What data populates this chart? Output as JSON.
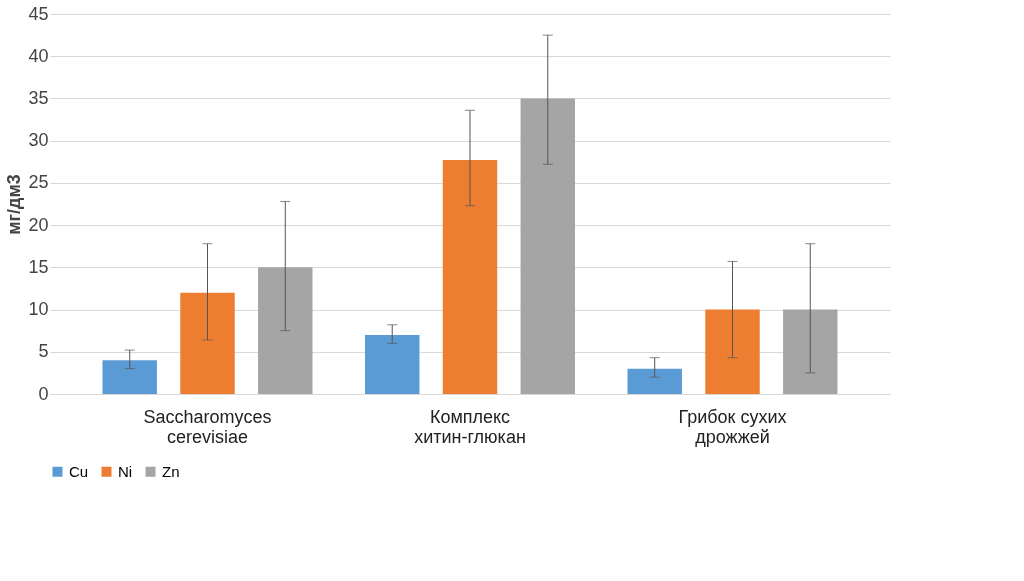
{
  "chart_data": {
    "type": "bar",
    "ylabel": "мг/дм3",
    "categories": [
      "Saccharomyces cerevisiae",
      "Комплекс хитин-глюкан",
      "Грибок сухих дрожжей"
    ],
    "series": [
      {
        "name": "Cu",
        "color": "#5b9bd5",
        "values": [
          4,
          7,
          3
        ],
        "errors": [
          [
            3,
            5.2
          ],
          [
            6,
            8.2
          ],
          [
            2,
            4.3
          ]
        ]
      },
      {
        "name": "Ni",
        "color": "#ed7d31",
        "values": [
          12,
          27.7,
          10
        ],
        "errors": [
          [
            6.4,
            17.8
          ],
          [
            22.3,
            33.6
          ],
          [
            4.3,
            15.7
          ]
        ]
      },
      {
        "name": "Zn",
        "color": "#a5a5a5",
        "values": [
          15,
          35,
          10
        ],
        "errors": [
          [
            7.5,
            22.8
          ],
          [
            27.2,
            42.5
          ],
          [
            2.5,
            17.8
          ]
        ]
      }
    ],
    "ylim": [
      0,
      45
    ],
    "yticks": [
      0,
      5,
      10,
      15,
      20,
      25,
      30,
      35,
      40,
      45
    ],
    "grid": "y",
    "legend": "bottom"
  }
}
